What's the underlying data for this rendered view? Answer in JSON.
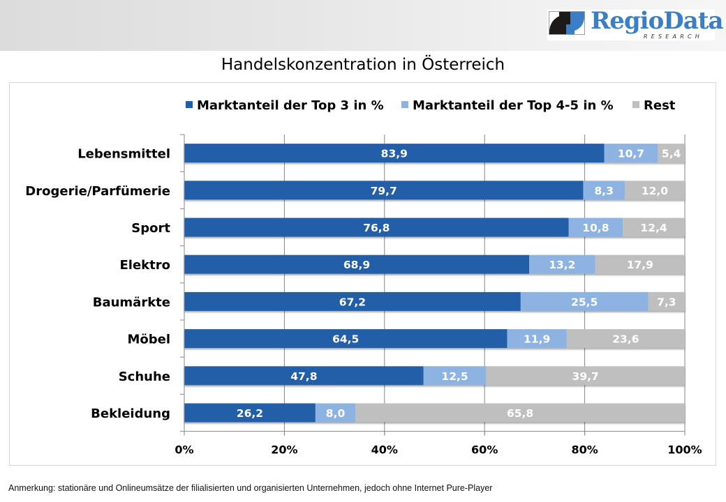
{
  "header": {
    "logo": {
      "brand_part1": "Regio",
      "brand_part2": "Data",
      "subtitle": "RESEARCH"
    }
  },
  "page_title": "Handelskonzentration in Österreich",
  "footnote": "Anmerkung: stationäre und Onlineumsätze der filialisierten und organisierten Unternehmen, jedoch ohne Internet Pure-Player",
  "colors": {
    "top3": "#215FA8",
    "top45": "#8DB3E2",
    "rest": "#BFBFBF"
  },
  "chart_data": {
    "type": "bar",
    "orientation": "horizontal",
    "stacked": "percent",
    "title": "Handelskonzentration in Österreich",
    "xlabel": "",
    "ylabel": "",
    "xlim": [
      0,
      100
    ],
    "x_ticks": [
      "0%",
      "20%",
      "40%",
      "60%",
      "80%",
      "100%"
    ],
    "x_tick_values": [
      0,
      20,
      40,
      60,
      80,
      100
    ],
    "grid": "vertical",
    "legend_position": "top",
    "categories": [
      "Lebensmittel",
      "Drogerie/Parfümerie",
      "Sport",
      "Elektro",
      "Baumärkte",
      "Möbel",
      "Schuhe",
      "Bekleidung"
    ],
    "series": [
      {
        "name": "Marktanteil der Top 3 in %",
        "color": "#215FA8",
        "values": [
          83.9,
          79.7,
          76.8,
          68.9,
          67.2,
          64.5,
          47.8,
          26.2
        ],
        "labels": [
          "83,9",
          "79,7",
          "76,8",
          "68,9",
          "67,2",
          "64,5",
          "47,8",
          "26,2"
        ]
      },
      {
        "name": "Marktanteil der Top 4-5 in %",
        "color": "#8DB3E2",
        "values": [
          10.7,
          8.3,
          10.8,
          13.2,
          25.5,
          11.9,
          12.5,
          8.0
        ],
        "labels": [
          "10,7",
          "8,3",
          "10,8",
          "13,2",
          "25,5",
          "11,9",
          "12,5",
          "8,0"
        ]
      },
      {
        "name": "Rest",
        "color": "#BFBFBF",
        "values": [
          5.4,
          12.0,
          12.4,
          17.9,
          7.3,
          23.6,
          39.7,
          65.8
        ],
        "labels": [
          "5,4",
          "12,0",
          "12,4",
          "17,9",
          "7,3",
          "23,6",
          "39,7",
          "65,8"
        ]
      }
    ]
  }
}
